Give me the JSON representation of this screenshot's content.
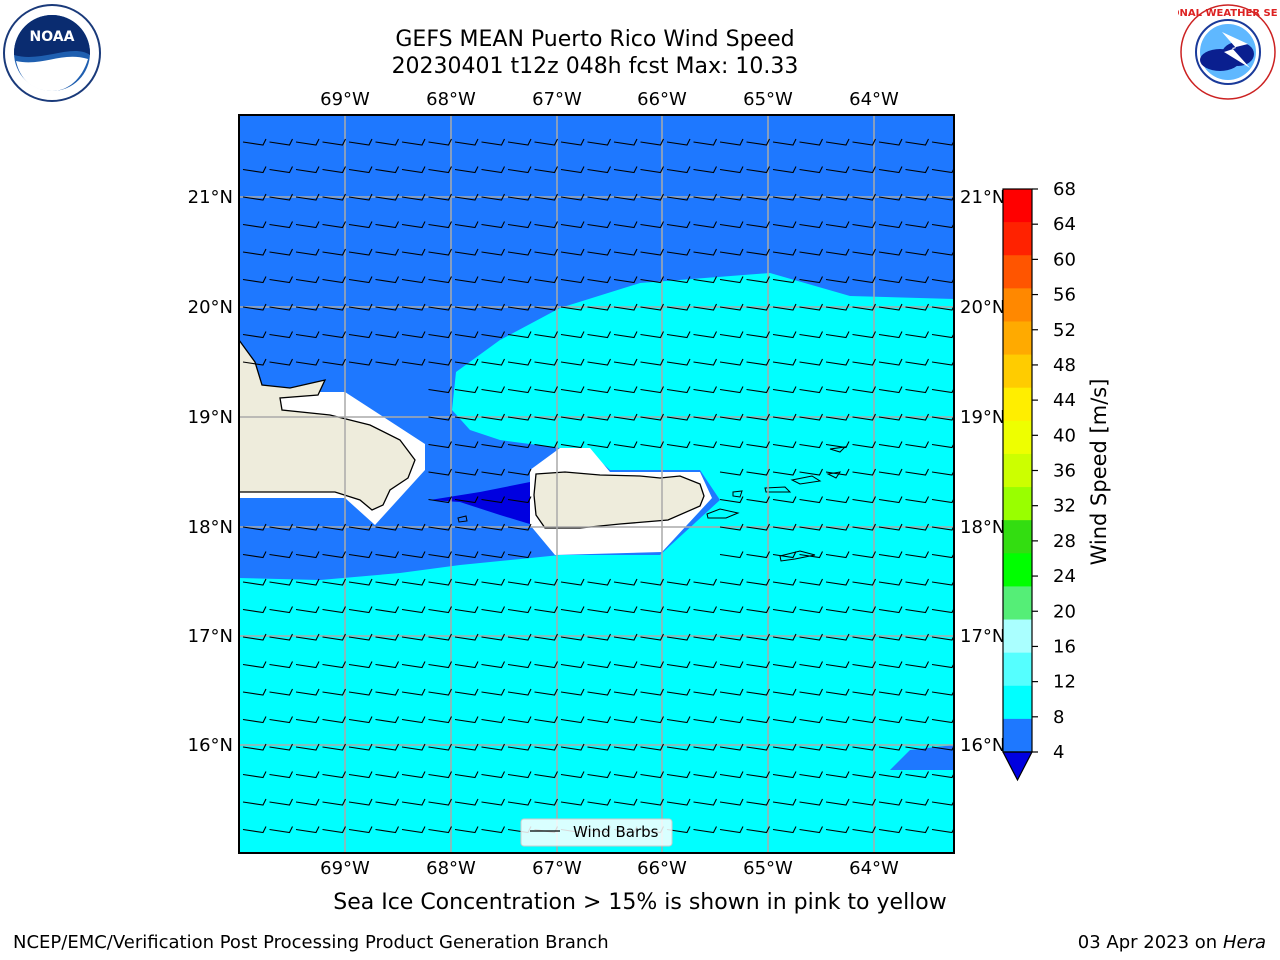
{
  "header": {
    "title_line1": "GEFS MEAN Puerto Rico Wind Speed",
    "title_line2": "20230401 t12z 048h fcst   Max: 10.33"
  },
  "map": {
    "lon_labels": [
      "69°W",
      "68°W",
      "67°W",
      "66°W",
      "65°W",
      "64°W"
    ],
    "lat_labels": [
      "21°N",
      "20°N",
      "19°N",
      "18°N",
      "17°N",
      "16°N"
    ],
    "legend_label": "Wind Barbs",
    "fill_colors": {
      "dark": "#0000e0",
      "mid": "#1e78ff",
      "light": "#00ffff",
      "land": "#eeecdc"
    }
  },
  "colorbar": {
    "label": "Wind Speed [m/s]",
    "ticks": [
      "68",
      "64",
      "60",
      "56",
      "52",
      "48",
      "44",
      "40",
      "36",
      "32",
      "28",
      "24",
      "20",
      "16",
      "12",
      "8",
      "4"
    ],
    "colors": [
      "#ff0000",
      "#ff2200",
      "#ff5500",
      "#ff8800",
      "#ffaa00",
      "#ffcc00",
      "#ffee00",
      "#eeff00",
      "#ccff00",
      "#99ff00",
      "#33dd11",
      "#00ff00",
      "#55ee77",
      "#aaffff",
      "#55ffff",
      "#00ffff",
      "#1e78ff",
      "#0000e0"
    ]
  },
  "subtitle": "Sea Ice Concentration > 15% is shown in pink to yellow",
  "footer": {
    "left": "NCEP/EMC/Verification Post Processing Product Generation Branch",
    "right_prefix": "03 Apr 2023 on ",
    "right_machine": "Hera"
  },
  "logos": {
    "noaa_text": "NOAA",
    "nws_text": "NATIONAL WEATHER SERVICE"
  }
}
